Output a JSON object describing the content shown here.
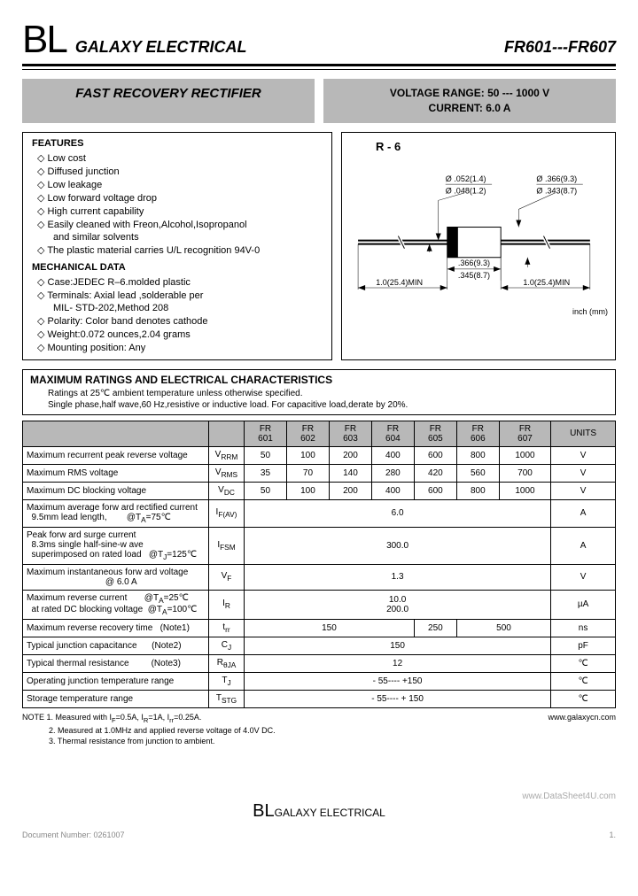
{
  "header": {
    "logo": "BL",
    "company": "GALAXY ELECTRICAL",
    "part_range": "FR601---FR607"
  },
  "title": {
    "left": "FAST RECOVERY RECTIFIER",
    "voltage_label": "VOLTAGE RANGE:",
    "voltage_value": "50 --- 1000 V",
    "current_label": "CURRENT:",
    "current_value": "6.0 A"
  },
  "features": {
    "heading": "FEATURES",
    "items": [
      "Low cost",
      "Diffused junction",
      "Low leakage",
      "Low forward voltage drop",
      "High current capability",
      "Easily cleaned with Freon,Alcohol,Isopropanol",
      "and similar solvents",
      "The plastic material carries U/L recognition 94V-0"
    ]
  },
  "mechanical": {
    "heading": "MECHANICAL DATA",
    "items": [
      "Case:JEDEC R–6.molded plastic",
      "Terminals: Axial lead ,solderable per",
      "MIL- STD-202,Method 208",
      "Polarity: Color band denotes cathode",
      "Weight:0.072 ounces,2.04 grams",
      "Mounting position: Any"
    ]
  },
  "diagram": {
    "label": "R - 6",
    "unit": "inch (mm)",
    "dim_lead_top": "Ø .052(1.4)",
    "dim_lead_bot": "Ø .048(1.2)",
    "dim_body_dia_top": "Ø .366(9.3)",
    "dim_body_dia_bot": "Ø .343(8.7)",
    "dim_body_len_top": ".366(9.3)",
    "dim_body_len_bot": ".345(8.7)",
    "dim_lead_len_l": "1.0(25.4)MIN",
    "dim_lead_len_r": "1.0(25.4)MIN"
  },
  "ratings": {
    "heading": "MAXIMUM RATINGS AND ELECTRICAL CHARACTERISTICS",
    "line1": "Ratings at 25℃ ambient temperature unless otherwise specified.",
    "line2": "Single phase,half wave,60 Hz,resistive or inductive load. For capacitive load,derate by 20%."
  },
  "table": {
    "columns": [
      "",
      "",
      "FR 601",
      "FR 602",
      "FR 603",
      "FR 604",
      "FR 605",
      "FR 606",
      "FR 607",
      "UNITS"
    ],
    "rows": [
      {
        "label": "Maximum recurrent peak reverse voltage",
        "sym": "V<sub>RRM</sub>",
        "v": [
          "50",
          "100",
          "200",
          "400",
          "600",
          "800",
          "1000"
        ],
        "u": "V"
      },
      {
        "label": "Maximum RMS voltage",
        "sym": "V<sub>RMS</sub>",
        "v": [
          "35",
          "70",
          "140",
          "280",
          "420",
          "560",
          "700"
        ],
        "u": "V"
      },
      {
        "label": "Maximum DC blocking voltage",
        "sym": "V<sub>DC</sub>",
        "v": [
          "50",
          "100",
          "200",
          "400",
          "600",
          "800",
          "1000"
        ],
        "u": "V"
      },
      {
        "label": "Maximum average forw ard rectified current<br>&nbsp;&nbsp;9.5mm lead length,&nbsp;&nbsp;&nbsp;&nbsp;&nbsp;&nbsp;&nbsp;&nbsp;@T<sub>A</sub>=75℃",
        "sym": "I<sub>F(AV)</sub>",
        "span": "6.0",
        "u": "A"
      },
      {
        "label": "Peak forw ard surge current<br>&nbsp;&nbsp;8.3ms single half-sine-w ave<br>&nbsp;&nbsp;superimposed on rated load &nbsp;&nbsp;@T<sub>J</sub>=125℃",
        "sym": "I<sub>FSM</sub>",
        "span": "300.0",
        "u": "A"
      },
      {
        "label": "Maximum instantaneous forw ard voltage<br>&nbsp;&nbsp;&nbsp;&nbsp;&nbsp;&nbsp;&nbsp;&nbsp;&nbsp;&nbsp;&nbsp;&nbsp;&nbsp;&nbsp;&nbsp;&nbsp;&nbsp;&nbsp;&nbsp;&nbsp;&nbsp;&nbsp;&nbsp;&nbsp;&nbsp;&nbsp;&nbsp;&nbsp;&nbsp;&nbsp;&nbsp;&nbsp;@ 6.0 A",
        "sym": "V<sub>F</sub>",
        "span": "1.3",
        "u": "V"
      },
      {
        "label": "Maximum reverse current&nbsp;&nbsp;&nbsp;&nbsp;&nbsp;&nbsp;&nbsp;@T<sub>A</sub>=25℃<br>&nbsp;&nbsp;at rated DC blocking voltage &nbsp;@T<sub>A</sub>=100℃",
        "sym": "I<sub>R</sub>",
        "span": "10.0<br>200.0",
        "u": "µA"
      },
      {
        "label": "Maximum reverse recovery time &nbsp;&nbsp;(Note1)",
        "sym": "t<sub>rr</sub>",
        "multi": [
          {
            "s": 4,
            "v": "150"
          },
          {
            "s": 1,
            "v": "250"
          },
          {
            "s": 2,
            "v": "500"
          }
        ],
        "u": "ns"
      },
      {
        "label": "Typical junction capacitance &nbsp;&nbsp;&nbsp;&nbsp;&nbsp;(Note2)",
        "sym": "C<sub>J</sub>",
        "span": "150",
        "u": "pF"
      },
      {
        "label": "Typical thermal resistance &nbsp;&nbsp;&nbsp;&nbsp;&nbsp;&nbsp;&nbsp;&nbsp;(Note3)",
        "sym": "R<sub>θJA</sub>",
        "span": "12",
        "u": "℃"
      },
      {
        "label": "Operating junction temperature range",
        "sym": "T<sub>J</sub>",
        "span": "- 55---- +150",
        "u": "℃"
      },
      {
        "label": "Storage temperature range",
        "sym": "T<sub>STG</sub>",
        "span": "- 55---- + 150",
        "u": "℃"
      }
    ]
  },
  "notes": {
    "n1": "NOTE 1. Measured with I<sub>F</sub>=0.5A, I<sub>R</sub>=1A, I<sub>rr</sub>=0.25A.",
    "n2": "2. Measured at 1.0MHz and applied reverse voltage of 4.0V DC.",
    "n3": "3. Thermal resistance from junction to ambient.",
    "site": "www.galaxycn.com"
  },
  "footer": {
    "logo": "BL",
    "company": "GALAXY ELECTRICAL",
    "doc": "Document Number: 0261007",
    "watermark": "www.DataSheet4U.com",
    "page": "1."
  }
}
